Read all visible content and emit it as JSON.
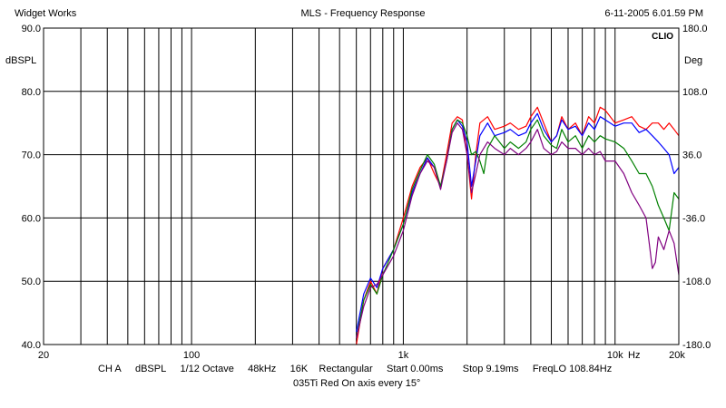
{
  "header": {
    "left": "Widget Works",
    "center": "MLS - Frequency Response",
    "right": "6-11-2005 6.01.59 PM"
  },
  "brand": "CLIO",
  "footer": {
    "settings": [
      "CH A",
      "dBSPL",
      "1/12 Octave",
      "48kHz",
      "16K",
      "Rectangular",
      "Start 0.00ms",
      "Stop 9.19ms",
      "FreqLO 108.84Hz"
    ],
    "caption": "035Ti Red On axis every 15°"
  },
  "chart_data": {
    "type": "line",
    "xscale": "log",
    "xlim": [
      20,
      20000
    ],
    "ylim": [
      40,
      90
    ],
    "ylim_right": [
      -180,
      180
    ],
    "ylabel": "dBSPL",
    "ylabel_right": "Deg",
    "xlabel": "Hz",
    "x_tick_labels": [
      {
        "value": 20,
        "label": "20"
      },
      {
        "value": 100,
        "label": "100"
      },
      {
        "value": 1000,
        "label": "1k"
      },
      {
        "value": 10000,
        "label": "10k"
      },
      {
        "value": 20000,
        "label": "20k"
      }
    ],
    "y_tick_labels": [
      "40.0",
      "50.0",
      "60.0",
      "70.0",
      "80.0",
      "90.0"
    ],
    "y_tick_labels_right": [
      "-180.0",
      "-108.0",
      "-36.0",
      "36.0",
      "108.0",
      "180.0"
    ],
    "grid": true,
    "series": [
      {
        "color": "#ff0000",
        "points": [
          [
            600,
            40
          ],
          [
            650,
            47
          ],
          [
            700,
            50
          ],
          [
            750,
            48
          ],
          [
            800,
            52
          ],
          [
            900,
            55
          ],
          [
            1000,
            60
          ],
          [
            1100,
            65
          ],
          [
            1200,
            68
          ],
          [
            1300,
            69.5
          ],
          [
            1400,
            67
          ],
          [
            1500,
            65
          ],
          [
            1600,
            70
          ],
          [
            1700,
            75
          ],
          [
            1800,
            76
          ],
          [
            1900,
            75.5
          ],
          [
            2000,
            70
          ],
          [
            2100,
            63
          ],
          [
            2200,
            70
          ],
          [
            2300,
            75
          ],
          [
            2500,
            76
          ],
          [
            2700,
            74
          ],
          [
            3000,
            74.5
          ],
          [
            3200,
            75
          ],
          [
            3500,
            74
          ],
          [
            3800,
            74.5
          ],
          [
            4000,
            76
          ],
          [
            4300,
            77.5
          ],
          [
            4600,
            75
          ],
          [
            5000,
            72
          ],
          [
            5300,
            73
          ],
          [
            5600,
            76
          ],
          [
            6000,
            74
          ],
          [
            6500,
            75
          ],
          [
            7000,
            73
          ],
          [
            7500,
            76
          ],
          [
            8000,
            75
          ],
          [
            8500,
            77.5
          ],
          [
            9000,
            77
          ],
          [
            10000,
            75
          ],
          [
            11000,
            75.5
          ],
          [
            12000,
            76
          ],
          [
            13000,
            74.5
          ],
          [
            14000,
            74
          ],
          [
            15000,
            75
          ],
          [
            16000,
            75
          ],
          [
            17000,
            74
          ],
          [
            18000,
            75
          ],
          [
            19000,
            74
          ],
          [
            20000,
            73
          ]
        ]
      },
      {
        "color": "#0000ff",
        "points": [
          [
            600,
            42
          ],
          [
            650,
            48
          ],
          [
            700,
            50.5
          ],
          [
            750,
            49
          ],
          [
            800,
            52
          ],
          [
            900,
            55
          ],
          [
            1000,
            59
          ],
          [
            1100,
            64
          ],
          [
            1200,
            67
          ],
          [
            1300,
            69.5
          ],
          [
            1400,
            68
          ],
          [
            1500,
            65
          ],
          [
            1600,
            69
          ],
          [
            1700,
            74
          ],
          [
            1800,
            75.5
          ],
          [
            1900,
            74.5
          ],
          [
            2000,
            72
          ],
          [
            2100,
            65
          ],
          [
            2200,
            69
          ],
          [
            2300,
            73
          ],
          [
            2500,
            75
          ],
          [
            2700,
            73
          ],
          [
            3000,
            73.5
          ],
          [
            3200,
            74
          ],
          [
            3500,
            73
          ],
          [
            3800,
            73.5
          ],
          [
            4000,
            75
          ],
          [
            4300,
            76.5
          ],
          [
            4600,
            74
          ],
          [
            5000,
            72
          ],
          [
            5300,
            73
          ],
          [
            5600,
            75.5
          ],
          [
            6000,
            74
          ],
          [
            6500,
            74.5
          ],
          [
            7000,
            73
          ],
          [
            7500,
            75
          ],
          [
            8000,
            74
          ],
          [
            8500,
            76
          ],
          [
            9000,
            75.5
          ],
          [
            10000,
            74.5
          ],
          [
            11000,
            75
          ],
          [
            12000,
            75
          ],
          [
            13000,
            73.5
          ],
          [
            14000,
            74
          ],
          [
            15000,
            73
          ],
          [
            16000,
            72
          ],
          [
            17000,
            71
          ],
          [
            18000,
            70
          ],
          [
            19000,
            67
          ],
          [
            20000,
            68
          ]
        ]
      },
      {
        "color": "#008000",
        "points": [
          [
            600,
            41
          ],
          [
            650,
            47
          ],
          [
            700,
            49.5
          ],
          [
            750,
            48
          ],
          [
            800,
            51
          ],
          [
            900,
            55
          ],
          [
            1000,
            59
          ],
          [
            1100,
            64.5
          ],
          [
            1200,
            67.5
          ],
          [
            1300,
            70
          ],
          [
            1400,
            68.5
          ],
          [
            1500,
            65
          ],
          [
            1600,
            69
          ],
          [
            1700,
            74
          ],
          [
            1800,
            75.5
          ],
          [
            1900,
            75
          ],
          [
            2000,
            73
          ],
          [
            2100,
            70
          ],
          [
            2200,
            70.5
          ],
          [
            2300,
            69
          ],
          [
            2400,
            67
          ],
          [
            2500,
            71
          ],
          [
            2700,
            73
          ],
          [
            3000,
            71
          ],
          [
            3200,
            72
          ],
          [
            3500,
            71
          ],
          [
            3800,
            72
          ],
          [
            4000,
            74
          ],
          [
            4300,
            75.5
          ],
          [
            4600,
            73
          ],
          [
            5000,
            71.5
          ],
          [
            5300,
            71
          ],
          [
            5600,
            74
          ],
          [
            6000,
            72
          ],
          [
            6500,
            73
          ],
          [
            7000,
            71
          ],
          [
            7500,
            73
          ],
          [
            8000,
            72
          ],
          [
            8500,
            73
          ],
          [
            9000,
            72.5
          ],
          [
            10000,
            72
          ],
          [
            11000,
            71
          ],
          [
            12000,
            69
          ],
          [
            13000,
            67
          ],
          [
            14000,
            67
          ],
          [
            15000,
            65
          ],
          [
            16000,
            62
          ],
          [
            17000,
            60
          ],
          [
            18000,
            58
          ],
          [
            19000,
            64
          ],
          [
            20000,
            63
          ]
        ]
      },
      {
        "color": "#800080",
        "points": [
          [
            600,
            41
          ],
          [
            650,
            46
          ],
          [
            700,
            49
          ],
          [
            750,
            49.5
          ],
          [
            800,
            51
          ],
          [
            900,
            54
          ],
          [
            1000,
            58
          ],
          [
            1100,
            63.5
          ],
          [
            1200,
            67
          ],
          [
            1300,
            69
          ],
          [
            1400,
            68
          ],
          [
            1500,
            64.5
          ],
          [
            1600,
            69
          ],
          [
            1700,
            73.5
          ],
          [
            1800,
            75
          ],
          [
            1900,
            74
          ],
          [
            2000,
            70
          ],
          [
            2100,
            64
          ],
          [
            2200,
            67
          ],
          [
            2300,
            70
          ],
          [
            2500,
            72
          ],
          [
            2700,
            71
          ],
          [
            3000,
            70
          ],
          [
            3200,
            71
          ],
          [
            3500,
            70
          ],
          [
            3800,
            71
          ],
          [
            4000,
            72
          ],
          [
            4300,
            74
          ],
          [
            4600,
            71
          ],
          [
            5000,
            70
          ],
          [
            5300,
            70.5
          ],
          [
            5600,
            72
          ],
          [
            6000,
            71
          ],
          [
            6500,
            71
          ],
          [
            7000,
            70
          ],
          [
            7500,
            71
          ],
          [
            8000,
            70
          ],
          [
            8500,
            70.5
          ],
          [
            9000,
            69
          ],
          [
            10000,
            69
          ],
          [
            11000,
            67
          ],
          [
            12000,
            64
          ],
          [
            13000,
            62
          ],
          [
            14000,
            60
          ],
          [
            14500,
            56
          ],
          [
            15000,
            52
          ],
          [
            15500,
            53
          ],
          [
            16000,
            57
          ],
          [
            17000,
            55
          ],
          [
            18000,
            58
          ],
          [
            19000,
            56
          ],
          [
            20000,
            51
          ]
        ]
      }
    ]
  }
}
